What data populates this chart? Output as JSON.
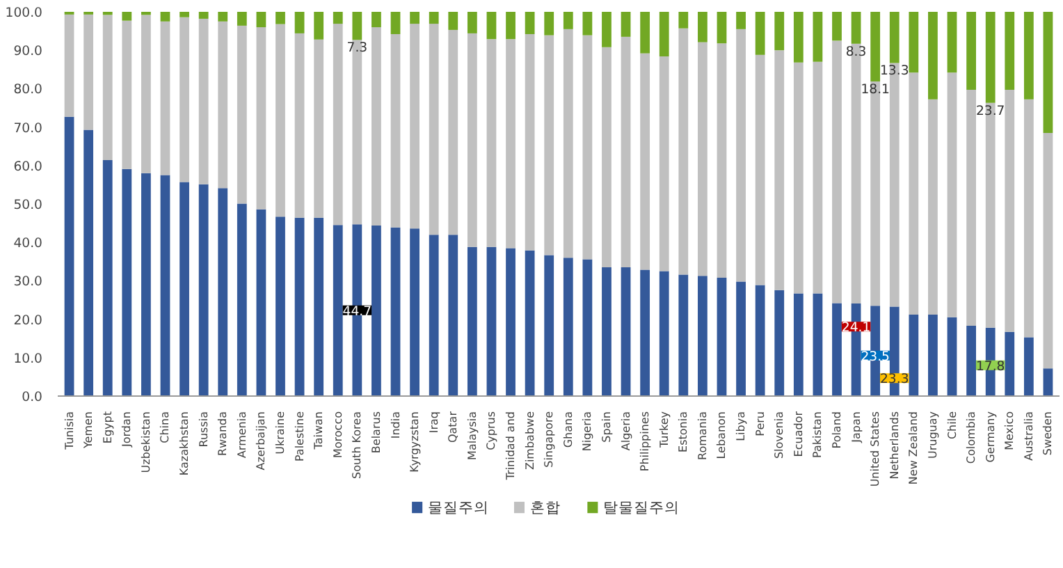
{
  "chart_data": {
    "type": "bar",
    "stacked": true,
    "categories": [
      "Tunisia",
      "Yemen",
      "Egypt",
      "Jordan",
      "Uzbekistan",
      "China",
      "Kazakhstan",
      "Russia",
      "Rwanda",
      "Armenia",
      "Azerbaijan",
      "Ukraine",
      "Palestine",
      "Taiwan",
      "Morocco",
      "South Korea",
      "Belarus",
      "India",
      "Kyrgyzstan",
      "Iraq",
      "Qatar",
      "Malaysia",
      "Cyprus",
      "Trinidad and",
      "Zimbabwe",
      "Singapore",
      "Ghana",
      "Nigeria",
      "Spain",
      "Algeria",
      "Philippines",
      "Turkey",
      "Estonia",
      "Romania",
      "Lebanon",
      "Libya",
      "Peru",
      "Slovenia",
      "Ecuador",
      "Pakistan",
      "Poland",
      "Japan",
      "United States",
      "Netherlands",
      "New Zealand",
      "Uruguay",
      "Chile",
      "Colombia",
      "Germany",
      "Mexico",
      "Australia",
      "Sweden"
    ],
    "series": [
      {
        "name": "물질주의",
        "color": "#34599a",
        "values": [
          72.7,
          69.3,
          61.4,
          59.1,
          58.0,
          57.5,
          55.7,
          55.1,
          54.1,
          50.1,
          48.6,
          46.7,
          46.4,
          46.4,
          44.5,
          44.7,
          44.4,
          43.9,
          43.6,
          42.0,
          42.0,
          38.8,
          38.8,
          38.5,
          37.9,
          36.7,
          36.0,
          35.6,
          33.5,
          33.5,
          32.9,
          32.5,
          31.6,
          31.3,
          30.8,
          29.8,
          28.9,
          27.6,
          26.7,
          26.7,
          24.2,
          24.1,
          23.5,
          23.3,
          21.2,
          21.2,
          20.5,
          18.3,
          17.8,
          16.7,
          15.3,
          7.2
        ],
        "value_labels": [
          null,
          null,
          null,
          null,
          null,
          null,
          null,
          null,
          null,
          null,
          null,
          null,
          null,
          null,
          null,
          "44.7",
          null,
          null,
          null,
          null,
          null,
          null,
          null,
          null,
          null,
          null,
          null,
          null,
          null,
          null,
          null,
          null,
          null,
          null,
          null,
          null,
          null,
          null,
          null,
          null,
          null,
          "24.1",
          "23.5",
          "23.3",
          null,
          null,
          null,
          null,
          "17.8",
          null,
          null,
          null
        ]
      },
      {
        "name": "혼합",
        "color": "#c0c0c0",
        "values": [
          26.6,
          30.0,
          37.8,
          38.6,
          41.2,
          40.0,
          42.9,
          43.1,
          43.4,
          46.3,
          47.4,
          50.1,
          48.0,
          46.4,
          52.4,
          48.0,
          51.6,
          50.3,
          53.3,
          54.9,
          53.3,
          55.6,
          54.1,
          54.4,
          56.3,
          57.2,
          59.5,
          58.3,
          57.3,
          60.0,
          56.3,
          55.9,
          64.1,
          60.8,
          61.0,
          65.7,
          59.9,
          62.4,
          60.1,
          60.3,
          68.3,
          67.6,
          58.4,
          63.4,
          63.0,
          56.0,
          63.7,
          61.4,
          58.5,
          63.0,
          61.9,
          61.3
        ]
      },
      {
        "name": "탈물질주의",
        "color": "#72a824",
        "values": [
          0.7,
          0.7,
          0.8,
          2.3,
          0.8,
          2.5,
          1.4,
          1.8,
          2.5,
          3.6,
          4.0,
          3.2,
          5.6,
          7.2,
          3.1,
          7.3,
          4.0,
          5.8,
          3.1,
          3.1,
          4.7,
          5.6,
          7.1,
          7.1,
          5.8,
          6.1,
          4.5,
          6.1,
          9.2,
          6.5,
          10.8,
          11.6,
          4.3,
          7.9,
          8.2,
          4.5,
          11.2,
          10.0,
          13.2,
          13.0,
          7.5,
          8.3,
          18.1,
          13.3,
          15.8,
          22.8,
          15.8,
          20.3,
          23.7,
          20.3,
          22.8,
          31.5
        ],
        "value_labels": [
          null,
          null,
          null,
          null,
          null,
          null,
          null,
          null,
          null,
          null,
          null,
          null,
          null,
          null,
          null,
          "7.3",
          null,
          null,
          null,
          null,
          null,
          null,
          null,
          null,
          null,
          null,
          null,
          null,
          null,
          null,
          null,
          null,
          null,
          null,
          null,
          null,
          null,
          null,
          null,
          null,
          null,
          "8.3",
          "18.1",
          "13.3",
          null,
          null,
          null,
          null,
          "23.7",
          null,
          null,
          null
        ]
      }
    ],
    "ylim": [
      0,
      100
    ],
    "yticks": [
      {
        "value": 0,
        "label": "0.0"
      },
      {
        "value": 10,
        "label": "10.0"
      },
      {
        "value": 20,
        "label": "20.0"
      },
      {
        "value": 30,
        "label": "30.0"
      },
      {
        "value": 40,
        "label": "40.0"
      },
      {
        "value": 50,
        "label": "50.0"
      },
      {
        "value": 60,
        "label": "60.0"
      },
      {
        "value": 70,
        "label": "70.0"
      },
      {
        "value": 80,
        "label": "80.0"
      },
      {
        "value": 90,
        "label": "90.0"
      },
      {
        "value": 100,
        "label": "100.0"
      }
    ],
    "grid": false,
    "legend": "bottom"
  }
}
